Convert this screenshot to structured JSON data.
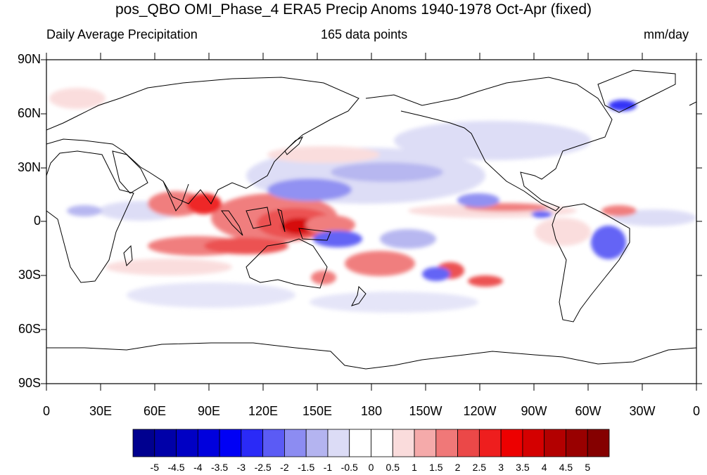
{
  "title": "pos_QBO OMI_Phase_4 ERA5 Precip Anoms 1940-1978 Oct-Apr (fixed)",
  "subtitle_left": "Daily Average Precipitation",
  "subtitle_center": "165 data points",
  "subtitle_right": "mm/day",
  "y_ticks": [
    "90N",
    "60N",
    "30N",
    "0",
    "30S",
    "60S",
    "90S"
  ],
  "x_ticks": [
    "0",
    "30E",
    "60E",
    "90E",
    "120E",
    "150E",
    "180",
    "150W",
    "120W",
    "90W",
    "60W",
    "30W",
    "0"
  ],
  "colorbar": {
    "labels": [
      "-5",
      "-4.5",
      "-4",
      "-3.5",
      "-3",
      "-2.5",
      "-2",
      "-1.5",
      "-1",
      "-0.5",
      "0",
      "0.5",
      "1",
      "1.5",
      "2",
      "2.5",
      "3",
      "3.5",
      "4",
      "4.5",
      "5"
    ],
    "colors": [
      "#00008f",
      "#0000a8",
      "#0000c4",
      "#0000dd",
      "#0000f5",
      "#2a2af7",
      "#5b5bf5",
      "#8c8cf2",
      "#b4b4f0",
      "#dcdcf6",
      "#ffffff",
      "#ffffff",
      "#fadcdc",
      "#f5aaaa",
      "#f07878",
      "#eb4848",
      "#ee1e1e",
      "#ed0000",
      "#d40000",
      "#b30000",
      "#990000",
      "#850000"
    ]
  }
}
